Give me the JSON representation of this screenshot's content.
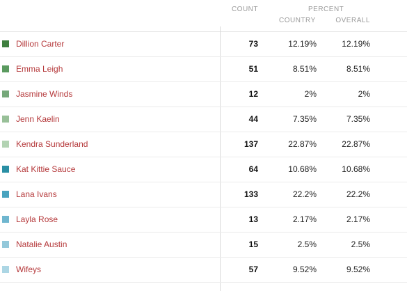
{
  "header": {
    "count": "COUNT",
    "percent": "PERCENT",
    "country": "COUNTRY",
    "overall": "OVERALL"
  },
  "rows": [
    {
      "name": "Dillion Carter",
      "count": "73",
      "pct_country": "12.19%",
      "pct_overall": "12.19%",
      "color": "#3f7f3f"
    },
    {
      "name": "Emma Leigh",
      "count": "51",
      "pct_country": "8.51%",
      "pct_overall": "8.51%",
      "color": "#5a9a5f"
    },
    {
      "name": "Jasmine Winds",
      "count": "12",
      "pct_country": "2%",
      "pct_overall": "2%",
      "color": "#76a87a"
    },
    {
      "name": "Jenn Kaelin",
      "count": "44",
      "pct_country": "7.35%",
      "pct_overall": "7.35%",
      "color": "#98c098"
    },
    {
      "name": "Kendra Sunderland",
      "count": "137",
      "pct_country": "22.87%",
      "pct_overall": "22.87%",
      "color": "#b3d3b3"
    },
    {
      "name": "Kat Kittie Sauce",
      "count": "64",
      "pct_country": "10.68%",
      "pct_overall": "10.68%",
      "color": "#2a8fa4"
    },
    {
      "name": "Lana Ivans",
      "count": "133",
      "pct_country": "22.2%",
      "pct_overall": "22.2%",
      "color": "#48a3bf"
    },
    {
      "name": "Layla Rose",
      "count": "13",
      "pct_country": "2.17%",
      "pct_overall": "2.17%",
      "color": "#6fb6cf"
    },
    {
      "name": "Natalie Austin",
      "count": "15",
      "pct_country": "2.5%",
      "pct_overall": "2.5%",
      "color": "#93c8da"
    },
    {
      "name": "Wifeys",
      "count": "57",
      "pct_country": "9.52%",
      "pct_overall": "9.52%",
      "color": "#acd6e4"
    }
  ]
}
